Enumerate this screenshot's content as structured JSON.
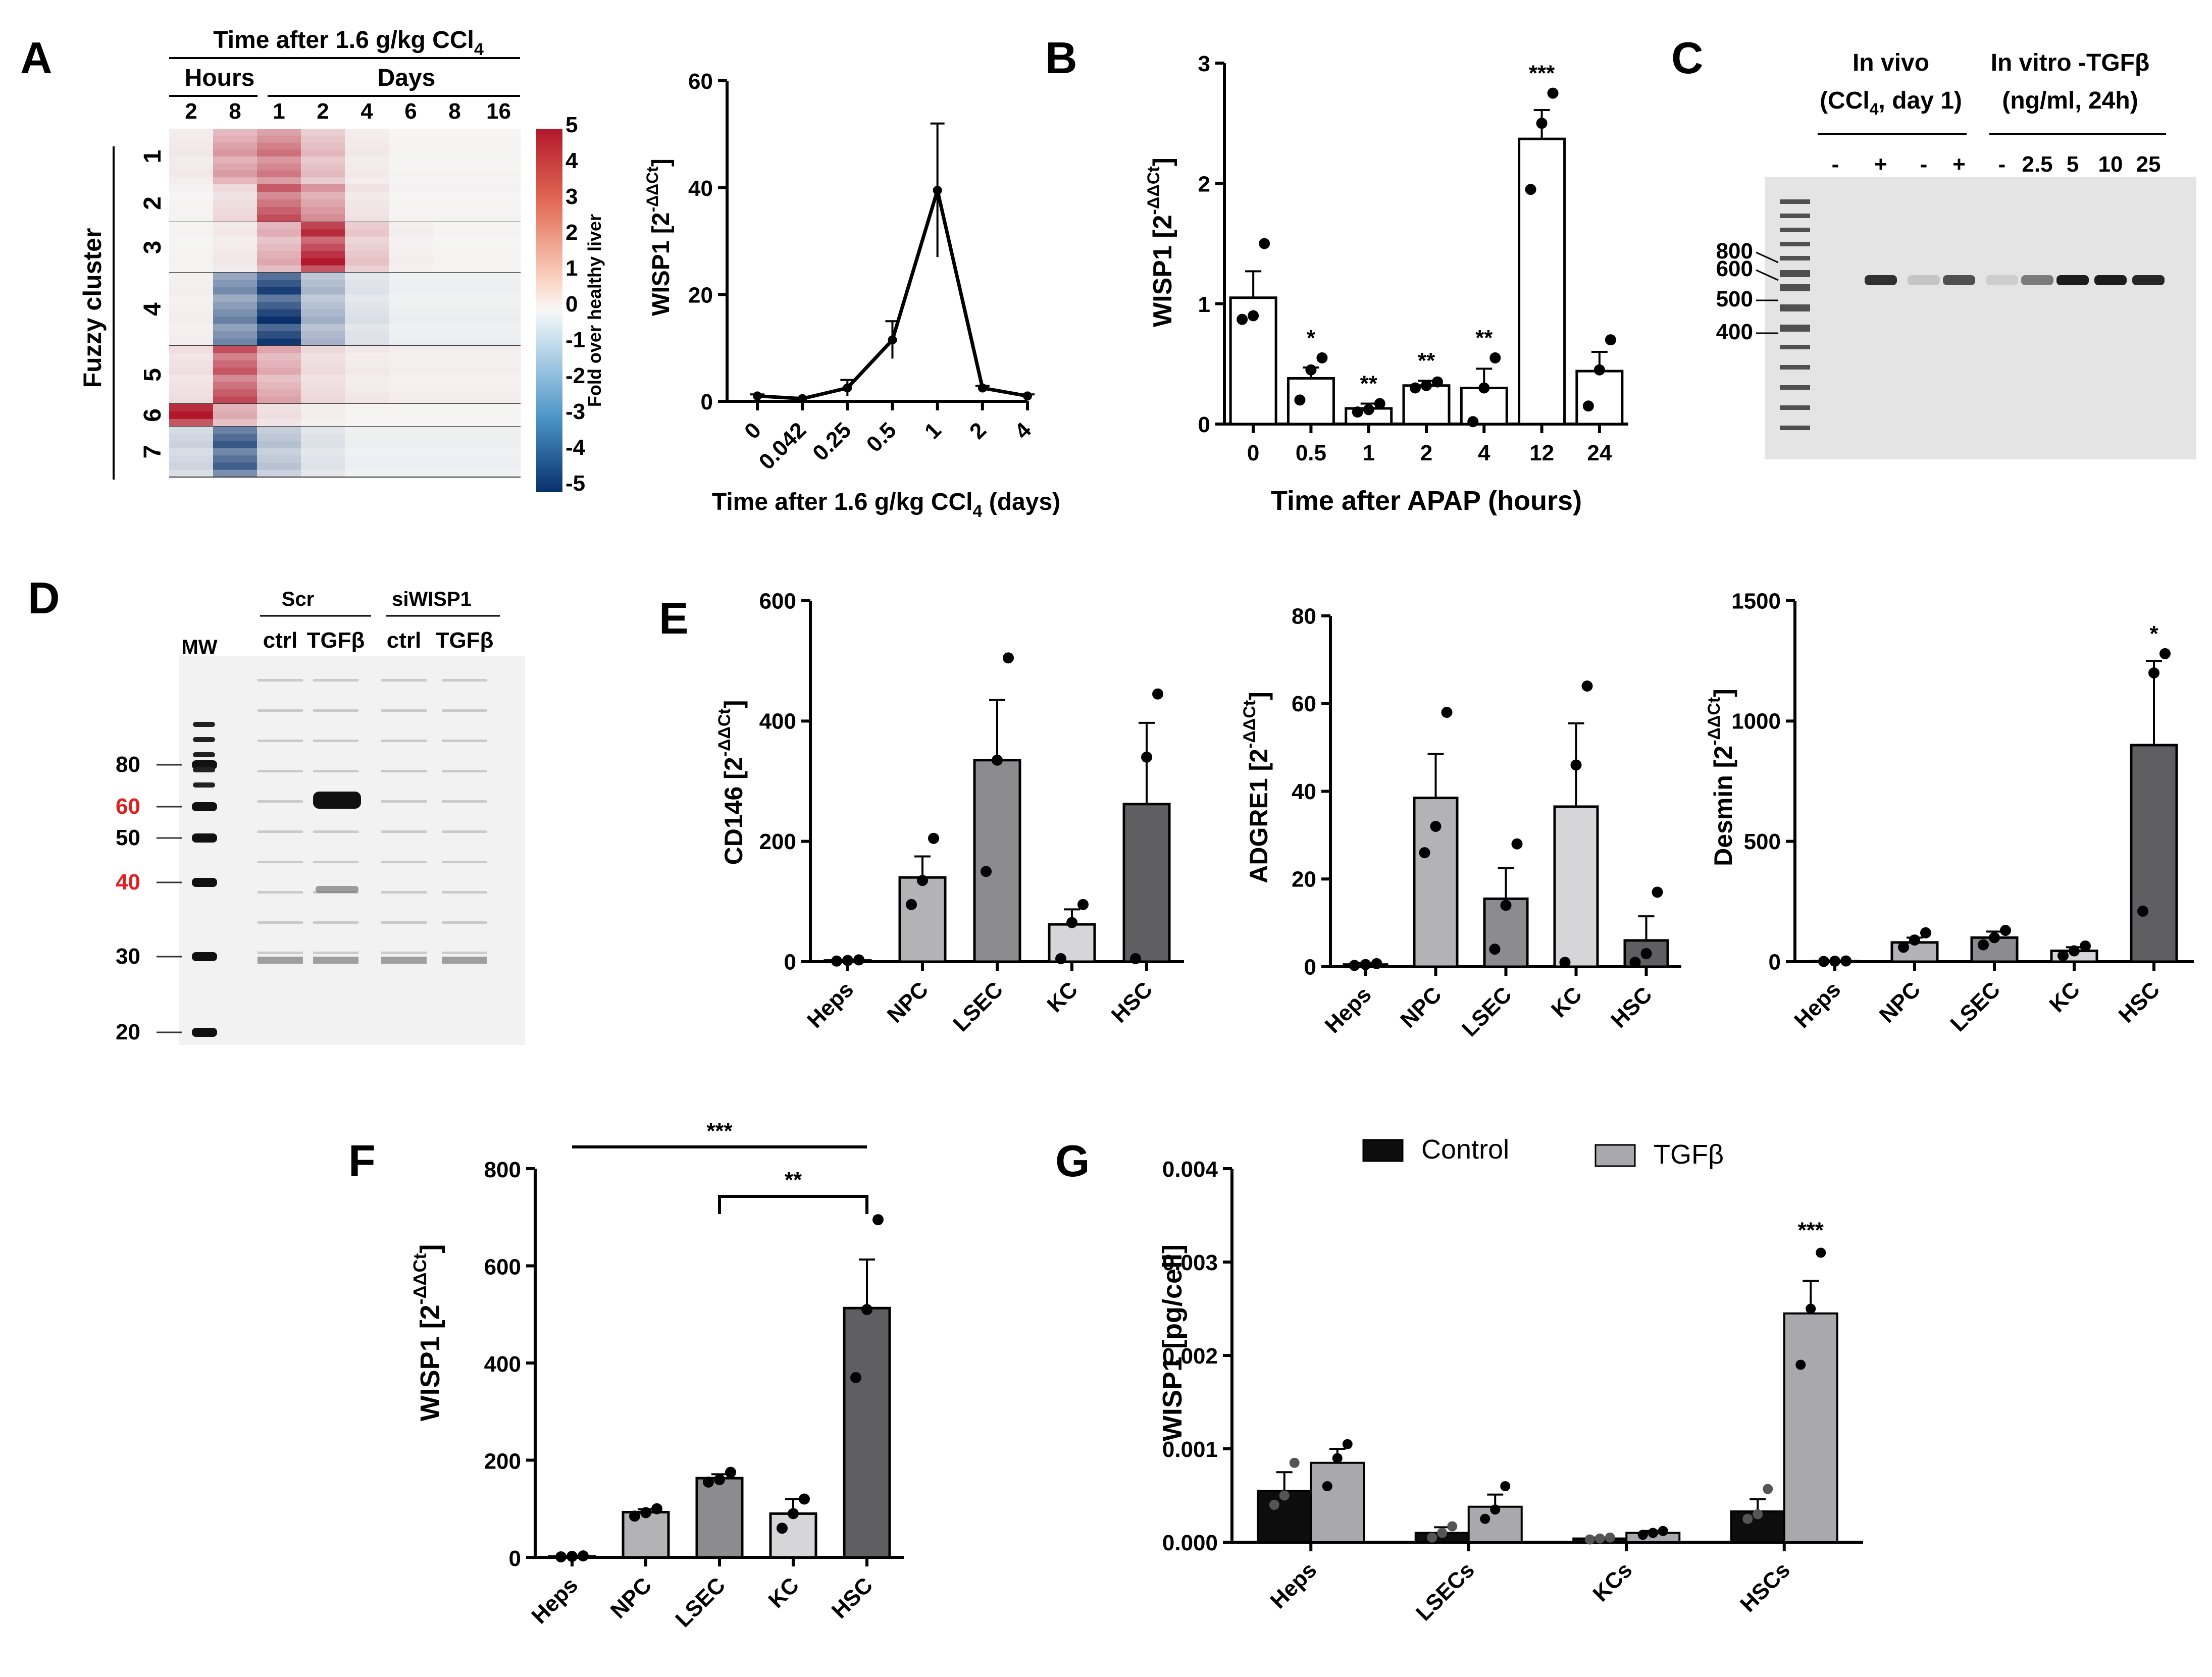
{
  "panel_labels": [
    "A",
    "B",
    "C",
    "D",
    "E",
    "F",
    "G"
  ],
  "chart_data": [
    {
      "panel": "A-heatmap",
      "type": "heatmap",
      "title": "Time after 1.6 g/kg CCl4",
      "title_main": "Time after 1.6 g/kg CCl",
      "title_sub": "4",
      "column_groups": [
        "Hours",
        "Days"
      ],
      "columns": [
        "2",
        "8",
        "1",
        "2",
        "4",
        "6",
        "8",
        "16"
      ],
      "row_axis_label": "Fuzzy cluster",
      "clusters": [
        "1",
        "2",
        "3",
        "4",
        "5",
        "6",
        "7"
      ],
      "cluster_mean_fold": [
        [
          0.3,
          1.8,
          2.5,
          1.2,
          0.3,
          0.1,
          0.1,
          0.1
        ],
        [
          0.1,
          0.6,
          3.2,
          2.0,
          0.4,
          0.1,
          0.1,
          0.1
        ],
        [
          0.1,
          0.3,
          1.5,
          4.2,
          1.0,
          0.2,
          0.1,
          0.1
        ],
        [
          0.2,
          -2.5,
          -4.2,
          -1.5,
          -0.5,
          -0.2,
          -0.2,
          -0.2
        ],
        [
          0.5,
          3.3,
          1.6,
          0.6,
          0.3,
          0.2,
          0.2,
          0.2
        ],
        [
          4.5,
          1.5,
          0.5,
          0.2,
          0.1,
          0.1,
          0.1,
          0.1
        ],
        [
          -0.8,
          -3.5,
          -1.2,
          -0.5,
          -0.2,
          -0.2,
          -0.2,
          -0.2
        ]
      ],
      "colorbar": {
        "label": "Fold over healthy liver",
        "ticks": [
          "5",
          "4",
          "3",
          "2",
          "1",
          "0",
          "-1",
          "-2",
          "-3",
          "-4",
          "-5"
        ],
        "min": -5,
        "max": 5,
        "low_color": "#1f5fa6",
        "mid_color": "#f7f7f7",
        "high_color": "#c21f26"
      }
    },
    {
      "panel": "A-line",
      "type": "line",
      "x": [
        "0",
        "0.042",
        "0.25",
        "0.5",
        "1",
        "2",
        "4"
      ],
      "values": [
        1,
        0.5,
        2.5,
        11.5,
        39.5,
        2.5,
        1
      ],
      "errors": [
        0.3,
        0.2,
        1.5,
        3.5,
        12.5,
        0.4,
        0.3
      ],
      "ylabel": "WISP1 [2-ΔΔCt]",
      "ylabel_main": "WISP1 [2",
      "ylabel_sup": "-ΔΔCt",
      "ylabel_close": "]",
      "xlabel": "Time after 1.6 g/kg CCl4 (days)",
      "xlabel_main": "Time after 1.6 g/kg CCl",
      "xlabel_sub": "4",
      "xlabel_tail": " (days)",
      "ylim": [
        0,
        60
      ],
      "yticks": [
        "0",
        "20",
        "40",
        "60"
      ]
    },
    {
      "panel": "B",
      "type": "bar",
      "categories": [
        "0",
        "0.5",
        "1",
        "2",
        "4",
        "12",
        "24"
      ],
      "values": [
        1.05,
        0.38,
        0.13,
        0.32,
        0.3,
        2.37,
        0.44
      ],
      "errors": [
        0.22,
        0.09,
        0.04,
        0.04,
        0.16,
        0.24,
        0.16
      ],
      "points": [
        [
          0.87,
          0.9,
          1.5
        ],
        [
          0.2,
          0.45,
          0.55
        ],
        [
          0.1,
          0.12,
          0.17
        ],
        [
          0.3,
          0.32,
          0.35
        ],
        [
          0.02,
          0.3,
          0.55
        ],
        [
          1.95,
          2.5,
          2.75
        ],
        [
          0.15,
          0.45,
          0.7
        ]
      ],
      "significance": [
        "",
        "*",
        "**",
        "**",
        "**",
        "***",
        ""
      ],
      "ylabel": "WISP1 [2-ΔΔCt]",
      "ylabel_main": "WISP1 [2",
      "ylabel_sup": "-ΔΔCt",
      "ylabel_close": "]",
      "xlabel": "Time after APAP (hours)",
      "ylim": [
        0,
        3
      ],
      "yticks": [
        "0",
        "1",
        "2",
        "3"
      ]
    },
    {
      "panel": "E1",
      "type": "bar",
      "categories": [
        "Heps",
        "NPC",
        "LSEC",
        "KC",
        "HSC"
      ],
      "values": [
        2,
        140,
        335,
        62,
        262
      ],
      "errors": [
        1,
        35,
        100,
        25,
        135
      ],
      "points": [
        [
          1,
          2,
          3
        ],
        [
          95,
          135,
          205
        ],
        [
          150,
          335,
          505
        ],
        [
          5,
          65,
          95
        ],
        [
          5,
          340,
          445
        ]
      ],
      "colors": [
        "#ffffff",
        "#b3b3b6",
        "#8c8c8f",
        "#d6d6d8",
        "#5f5f62"
      ],
      "significance": [
        "",
        "",
        "",
        "",
        ""
      ],
      "ylabel": "CD146 [2-ΔΔCt]",
      "ylabel_main": "CD146 [2",
      "ylabel_sup": "-ΔΔCt",
      "ylabel_close": "]",
      "ylim": [
        0,
        600
      ],
      "yticks": [
        "0",
        "200",
        "400",
        "600"
      ]
    },
    {
      "panel": "E2",
      "type": "bar",
      "categories": [
        "Heps",
        "NPC",
        "LSEC",
        "KC",
        "HSC"
      ],
      "values": [
        0.5,
        38.5,
        15.5,
        36.5,
        6
      ],
      "errors": [
        0.3,
        10,
        7,
        19,
        5.5
      ],
      "points": [
        [
          0.3,
          0.5,
          0.7
        ],
        [
          26,
          32,
          58
        ],
        [
          4,
          14,
          28
        ],
        [
          1,
          46,
          64
        ],
        [
          1,
          3,
          17
        ]
      ],
      "colors": [
        "#ffffff",
        "#b3b3b6",
        "#8c8c8f",
        "#d6d6d8",
        "#5f5f62"
      ],
      "significance": [
        "",
        "",
        "",
        "",
        ""
      ],
      "ylabel": "ADGRE1 [2-ΔΔCt]",
      "ylabel_main": "ADGRE1 [2",
      "ylabel_sup": "-ΔΔCt",
      "ylabel_close": "]",
      "ylim": [
        0,
        80
      ],
      "yticks": [
        "0",
        "20",
        "40",
        "60",
        "80"
      ]
    },
    {
      "panel": "E3",
      "type": "bar",
      "categories": [
        "Heps",
        "NPC",
        "LSEC",
        "KC",
        "HSC"
      ],
      "values": [
        2,
        80,
        100,
        45,
        900
      ],
      "errors": [
        1,
        20,
        25,
        15,
        350
      ],
      "points": [
        [
          1,
          2,
          3
        ],
        [
          60,
          90,
          120
        ],
        [
          70,
          100,
          130
        ],
        [
          25,
          45,
          65
        ],
        [
          210,
          1200,
          1280
        ]
      ],
      "colors": [
        "#ffffff",
        "#b3b3b6",
        "#8c8c8f",
        "#d6d6d8",
        "#5f5f62"
      ],
      "significance": [
        "",
        "",
        "",
        "",
        "*"
      ],
      "ylabel": "Desmin [2-ΔΔCt]",
      "ylabel_main": "Desmin [2",
      "ylabel_sup": "-ΔΔCt",
      "ylabel_close": "]",
      "ylim": [
        0,
        1500
      ],
      "yticks": [
        "0",
        "500",
        "1000",
        "1500"
      ]
    },
    {
      "panel": "F",
      "type": "bar",
      "categories": [
        "Heps",
        "NPC",
        "LSEC",
        "KC",
        "HSC"
      ],
      "values": [
        2,
        93,
        163,
        90,
        513
      ],
      "errors": [
        1,
        6,
        8,
        30,
        100
      ],
      "points": [
        [
          1,
          2,
          3
        ],
        [
          85,
          92,
          100
        ],
        [
          155,
          160,
          175
        ],
        [
          60,
          90,
          120
        ],
        [
          370,
          510,
          695
        ]
      ],
      "colors": [
        "#ffffff",
        "#b3b3b6",
        "#8c8c8f",
        "#d6d6d8",
        "#5f5f62"
      ],
      "significance_brackets": [
        {
          "from": "Heps",
          "to": "HSC",
          "label": "***",
          "style": "line"
        },
        {
          "from": "LSEC",
          "to": "HSC",
          "label": "**",
          "style": "bracket"
        }
      ],
      "ylabel": "WISP1 [2-ΔΔCt]",
      "ylabel_main": "WISP1 [2",
      "ylabel_sup": "-ΔΔCt",
      "ylabel_close": "]",
      "ylim": [
        0,
        800
      ],
      "yticks": [
        "0",
        "200",
        "400",
        "600",
        "800"
      ]
    },
    {
      "panel": "G",
      "type": "bar",
      "categories": [
        "Heps",
        "LSECs",
        "KCs",
        "HSCs"
      ],
      "series": [
        {
          "name": "Control",
          "color": "#0d0d0d",
          "values": [
            0.00055,
            0.0001,
            4e-05,
            0.00033
          ],
          "errors": [
            0.0002,
            6e-05,
            1e-05,
            0.00013
          ],
          "points": [
            [
              0.0004,
              0.0005,
              0.00085
            ],
            [
              5e-05,
              0.0001,
              0.00017
            ],
            [
              3e-05,
              4e-05,
              5e-05
            ],
            [
              0.00025,
              0.0003,
              0.00057
            ]
          ]
        },
        {
          "name": "TGFβ",
          "color": "#a9a9ad",
          "values": [
            0.00085,
            0.00038,
            0.0001,
            0.00245
          ],
          "errors": [
            0.00015,
            0.00013,
            2e-05,
            0.00035
          ],
          "points": [
            [
              0.0006,
              0.0009,
              0.00105
            ],
            [
              0.00025,
              0.00035,
              0.0006
            ],
            [
              8e-05,
              0.0001,
              0.00012
            ],
            [
              0.0019,
              0.0025,
              0.0031
            ]
          ]
        }
      ],
      "significance": [
        "",
        "",
        "",
        "***"
      ],
      "ylabel": "WISP1 [pg/cell]",
      "ylim": [
        0,
        0.004
      ],
      "yticks": [
        "0.000",
        "0.001",
        "0.002",
        "0.003",
        "0.004"
      ]
    }
  ],
  "gel_c": {
    "header_left": [
      "In vivo",
      "(CCl4, day 1)"
    ],
    "header_left_line2_main": "(CCl",
    "header_left_line2_sub": "4",
    "header_left_line2_tail": ", day 1)",
    "header_right": [
      "In vitro -TGFβ",
      "(ng/ml, 24h)"
    ],
    "lanes": [
      "-",
      "+",
      "-",
      "+",
      "-",
      "2.5",
      "5",
      "10",
      "25"
    ],
    "ladder_labels": [
      "800",
      "600",
      "500",
      "400"
    ],
    "band_intensity": [
      0,
      0.85,
      0.15,
      0.7,
      0.1,
      0.5,
      0.95,
      0.95,
      0.9
    ]
  },
  "blot_d": {
    "groups": [
      "Scr",
      "siWISP1"
    ],
    "lanes": [
      "ctrl",
      "TGFβ",
      "ctrl",
      "TGFβ"
    ],
    "ladder_title": "MW",
    "markers": [
      "80",
      "60",
      "50",
      "40",
      "30",
      "20"
    ],
    "marker_colors": [
      "#000000",
      "#e02020",
      "#000000",
      "#e02020",
      "#000000",
      "#000000"
    ]
  },
  "colors": {
    "axis": "#000000",
    "heat_high": "#c21f26",
    "heat_low": "#1f5fa6",
    "gel_bg": "#e6e6e6",
    "band": "#1a1a1a"
  }
}
